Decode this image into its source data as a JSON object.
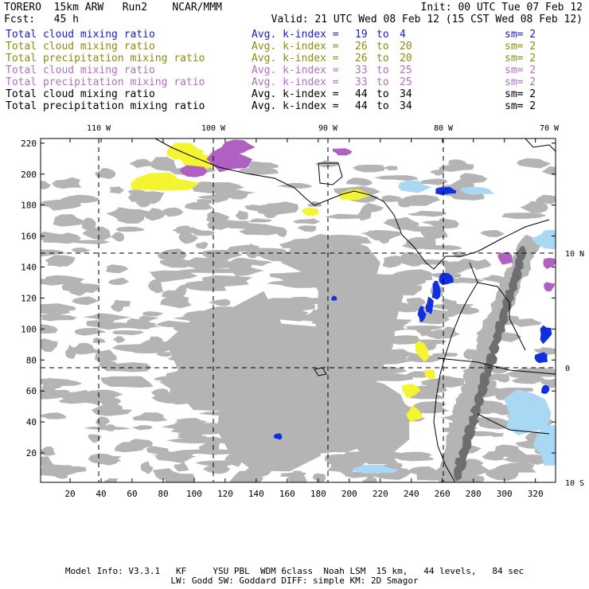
{
  "header": {
    "model": "TORERO",
    "resolution": "15km ARW",
    "run": "Run2",
    "org": "NCAR/MMM",
    "init": "Init: 00 UTC Tue 07 Feb 12",
    "fcst_label": "Fcst:",
    "fcst_value": "45 h",
    "valid": "Valid: 21 UTC Wed 08 Feb 12 (15 CST Wed 08 Feb 12)"
  },
  "legend": [
    {
      "field": "Total cloud mixing ratio",
      "kindex": "Avg. k-index =",
      "from": "19",
      "to_word": "to",
      "to": "4",
      "sm": "sm= 2",
      "color": "#1a1acc"
    },
    {
      "field": "Total cloud mixing ratio",
      "kindex": "Avg. k-index =",
      "from": "26",
      "to_word": "to",
      "to": "20",
      "sm": "sm= 2",
      "color": "#8c8c10"
    },
    {
      "field": "Total precipitation mixing ratio",
      "kindex": "Avg. k-index =",
      "from": "26",
      "to_word": "to",
      "to": "20",
      "sm": "sm= 2",
      "color": "#8c8c10"
    },
    {
      "field": "Total cloud mixing ratio",
      "kindex": "Avg. k-index =",
      "from": "33",
      "to_word": "to",
      "to": "25",
      "sm": "sm= 2",
      "color": "#b070c0"
    },
    {
      "field": "Total precipitation mixing ratio",
      "kindex": "Avg. k-index =",
      "from": "33",
      "to_word": "to",
      "to": "25",
      "sm": "sm= 2",
      "color": "#b070c0"
    },
    {
      "field": "Total cloud mixing ratio",
      "kindex": "Avg. k-index =",
      "from": "44",
      "to_word": "to",
      "to": "34",
      "sm": "sm= 2",
      "color": "#000000"
    },
    {
      "field": "Total precipitation mixing ratio",
      "kindex": "Avg. k-index =",
      "from": "44",
      "to_word": "to",
      "to": "34",
      "sm": "sm= 2",
      "color": "#000000"
    }
  ],
  "axes": {
    "x_ticks": [
      "20",
      "40",
      "60",
      "80",
      "100",
      "120",
      "140",
      "160",
      "180",
      "200",
      "220",
      "240",
      "260",
      "280",
      "300",
      "320"
    ],
    "y_ticks": [
      "20",
      "40",
      "60",
      "80",
      "100",
      "120",
      "140",
      "160",
      "180",
      "200",
      "220"
    ],
    "lon_labels": [
      "110 W",
      "100 W",
      "90 W",
      "80 W",
      "70 W"
    ],
    "lat_labels": [
      "10 N",
      "0",
      "10 S"
    ]
  },
  "footer": {
    "line1": "Model Info: V3.3.1   KF     YSU PBL  WDM 6class  Noah LSM  15 km,   44 levels,   84 sec",
    "line2": "LW: Godd SW: Goddard DIFF: simple KM: 2D Smagor"
  },
  "colors": {
    "cloud_gray": "#b4b4b4",
    "dark_gray": "#6e6e6e",
    "yellow": "#f4f430",
    "purple": "#b060c0",
    "blue": "#1030e0",
    "light_blue": "#a8d8f4",
    "coast": "#000000"
  }
}
